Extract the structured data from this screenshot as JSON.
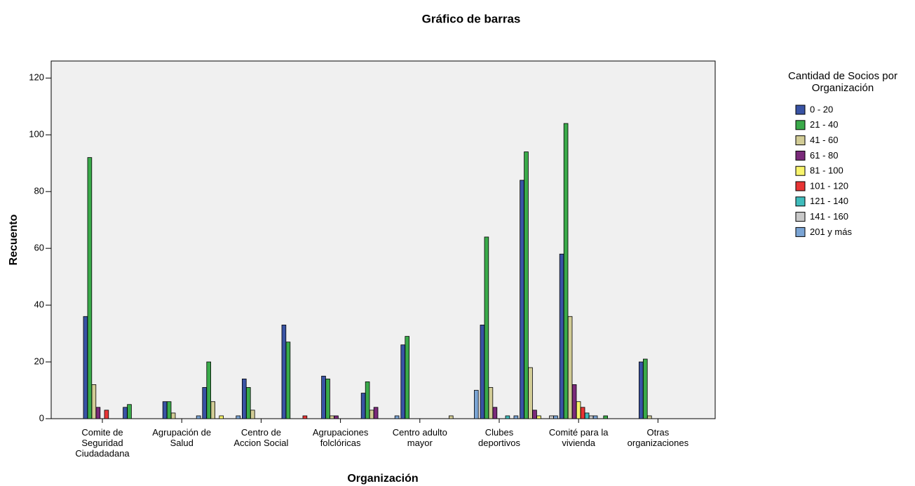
{
  "chart_data": {
    "type": "bar",
    "title": "Gráfico de barras",
    "x_label": "Organización",
    "y_label": "Recuento",
    "legend_title": "Cantidad de Socios por\nOrganización",
    "legend_position": "right",
    "categories": [
      "Comite de\nSeguridad\nCiudadadana",
      null,
      "Agrupación de\nSalud",
      null,
      "Centro de\nAccion Social",
      null,
      "Agrupaciones\nfolclóricas",
      null,
      "Centro adulto\nmayor",
      null,
      "Clubes\ndeportivos",
      null,
      "Comité para la\nvivienda",
      null,
      "Otras\norganizaciones",
      null
    ],
    "ylim": [
      0,
      126
    ],
    "yticks": [
      0,
      20,
      40,
      60,
      80,
      100,
      120
    ],
    "series": [
      {
        "name": "0 - 20",
        "color": "#3953a4",
        "values": [
          36,
          4,
          6,
          11,
          14,
          33,
          15,
          9,
          26,
          0,
          33,
          84,
          58,
          0,
          20,
          0
        ]
      },
      {
        "name": "21 - 40",
        "color": "#3aaa4a",
        "values": [
          92,
          5,
          6,
          20,
          11,
          27,
          14,
          13,
          29,
          0,
          64,
          94,
          104,
          1,
          21,
          0
        ]
      },
      {
        "name": "41 - 60",
        "color": "#d2cc96",
        "values": [
          12,
          0,
          2,
          6,
          3,
          0,
          1,
          3,
          0,
          1,
          11,
          18,
          36,
          0,
          1,
          0
        ]
      },
      {
        "name": "61 - 80",
        "color": "#7a2a7a",
        "values": [
          4,
          0,
          0,
          0,
          0,
          0,
          1,
          4,
          0,
          0,
          4,
          3,
          12,
          0,
          0,
          0
        ]
      },
      {
        "name": "81 - 100",
        "color": "#f8f46c",
        "values": [
          0,
          0,
          0,
          1,
          0,
          0,
          0,
          0,
          0,
          0,
          0,
          1,
          6,
          0,
          0,
          0
        ]
      },
      {
        "name": "101 - 120",
        "color": "#e83535",
        "values": [
          3,
          0,
          0,
          0,
          0,
          1,
          0,
          0,
          0,
          0,
          0,
          0,
          4,
          0,
          0,
          0
        ]
      },
      {
        "name": "121 - 140",
        "color": "#3fbcbc",
        "values": [
          0,
          0,
          0,
          0,
          0,
          0,
          0,
          0,
          0,
          0,
          1,
          0,
          2,
          0,
          0,
          0
        ]
      },
      {
        "name": "141 - 160",
        "color": "#c8c8c8",
        "values": [
          0,
          0,
          0,
          0,
          0,
          0,
          0,
          0,
          0,
          0,
          0,
          1,
          1,
          0,
          0,
          0
        ]
      },
      {
        "name": "201 y más",
        "color": "#7aa4d4",
        "values": [
          0,
          0,
          1,
          1,
          0,
          0,
          0,
          1,
          0,
          10,
          1,
          1,
          1,
          0,
          0,
          0
        ]
      }
    ]
  }
}
